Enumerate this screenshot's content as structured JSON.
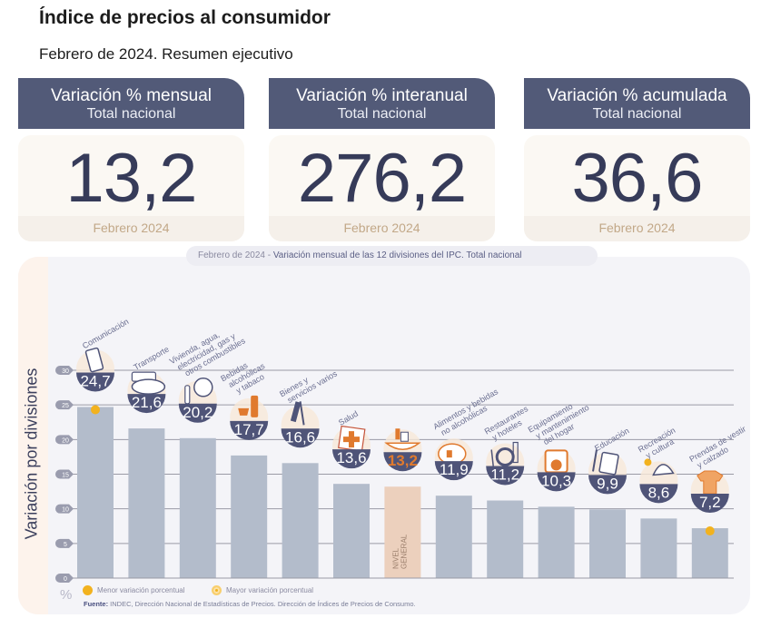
{
  "header": {
    "title": "Índice de precios al consumidor",
    "subtitle": "Febrero de 2024. Resumen ejecutivo"
  },
  "cards": [
    {
      "title": "Variación % mensual",
      "subtitle": "Total nacional",
      "value": "13,2",
      "period": "Febrero 2024"
    },
    {
      "title": "Variación % interanual",
      "subtitle": "Total nacional",
      "value": "276,2",
      "period": "Febrero 2024"
    },
    {
      "title": "Variación % acumulada",
      "subtitle": "Total nacional",
      "value": "36,6",
      "period": "Febrero 2024"
    }
  ],
  "colors": {
    "header_bg": "#525a78",
    "bar": "#b3bccb",
    "bar_highlight": "#ecd0bd",
    "bubble": "#4f5478",
    "accent_orange": "#e07a2e",
    "marker": "#f2b21f"
  },
  "chart_data": {
    "type": "bar",
    "title_prefix": "Febrero de 2024 - ",
    "title": "Variación mensual de las 12 divisiones del IPC. Total nacional",
    "ylabel": "Variación por divisiones",
    "yunit": "%",
    "ylim": [
      0,
      30
    ],
    "yticks": [
      0,
      5,
      10,
      15,
      20,
      25,
      30
    ],
    "grid": true,
    "categories": [
      "Comunicación",
      "Transporte",
      "Vivienda, agua, electricidad, gas y otros combustibles",
      "Bebidas alcohólicas y tabaco",
      "Bienes y servicios varios",
      "Salud",
      "Nivel general",
      "Alimentos y bebidas no alcohólicas",
      "Restaurantes y hoteles",
      "Equipamiento y mantenimiento del hogar",
      "Educación",
      "Recreación y cultura",
      "Prendas de vestir y calzado"
    ],
    "category_label_lines": [
      [
        "Comunicación"
      ],
      [
        "Transporte"
      ],
      [
        "Vivienda, agua,",
        "electricidad, gas y",
        "otros combustibles"
      ],
      [
        "Bebidas",
        "alcohólicas",
        "y tabaco"
      ],
      [
        "Bienes y",
        "servicios varios"
      ],
      [
        "Salud"
      ],
      [],
      [
        "Alimentos y bebidas",
        "no alcohólicas"
      ],
      [
        "Restaurantes",
        "y hoteles"
      ],
      [
        "Equipamiento",
        "y mantenimiento",
        "del hogar"
      ],
      [
        "Educación"
      ],
      [
        "Recreación",
        "y cultura"
      ],
      [
        "Prendas de vestir",
        "y calzado"
      ]
    ],
    "icons": [
      "smartphone-icon",
      "car-icon",
      "lightbulb-icon",
      "bottle-icon",
      "scissors-comb-icon",
      "medical-cross-icon",
      "shopping-basket-icon",
      "roast-chicken-icon",
      "plate-cutlery-icon",
      "washing-machine-icon",
      "notebook-icon",
      "beach-umbrella-icon",
      "tshirt-icon"
    ],
    "values": [
      24.7,
      21.6,
      20.2,
      17.7,
      16.6,
      13.6,
      13.2,
      11.9,
      11.2,
      10.3,
      9.9,
      8.6,
      7.2
    ],
    "value_labels": [
      "24,7",
      "21,6",
      "20,2",
      "17,7",
      "16,6",
      "13,6",
      "13,2",
      "11,9",
      "11,2",
      "10,3",
      "9,9",
      "8,6",
      "7,2"
    ],
    "highlight_index": 6,
    "highlight_bar_label": "NIVEL GENERAL",
    "max_marker_index": 0,
    "min_marker_index": 12,
    "legend": [
      {
        "label": "Menor variación porcentual",
        "marker": "dot"
      },
      {
        "label": "Mayor variación porcentual",
        "marker": "ring-dot"
      }
    ],
    "legend_position": "bottom-left"
  },
  "source": {
    "label": "Fuente:",
    "text": " INDEC, Dirección Nacional de Estadísticas de Precios. Dirección de Índices de Precios de Consumo."
  }
}
